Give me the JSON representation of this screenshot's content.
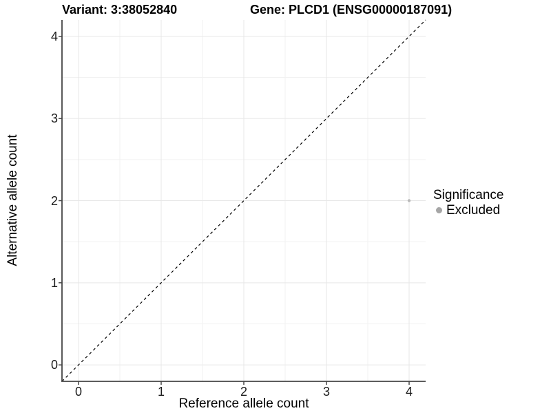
{
  "chart_data": {
    "type": "scatter",
    "title_left": "Variant: 3:38052840",
    "title_right": "Gene: PLCD1 (ENSG00000187091)",
    "xlabel": "Reference allele count",
    "ylabel": "Alternative allele count",
    "xlim": [
      -0.2,
      4.2
    ],
    "ylim": [
      -0.2,
      4.2
    ],
    "x_ticks": [
      0,
      1,
      2,
      3,
      4
    ],
    "y_ticks": [
      0,
      1,
      2,
      3,
      4
    ],
    "x_minor_ticks": [
      0.5,
      1.5,
      2.5,
      3.5
    ],
    "y_minor_ticks": [
      0.5,
      1.5,
      2.5,
      3.5
    ],
    "grid": true,
    "reference_line": {
      "style": "dashed",
      "from": [
        -0.2,
        -0.2
      ],
      "to": [
        4.2,
        4.2
      ],
      "color": "#000000"
    },
    "series": [
      {
        "name": "Excluded",
        "color": "#b9b9b9",
        "point_radius": 2.2,
        "points": [
          {
            "x": 4,
            "y": 2
          }
        ]
      }
    ],
    "legend": {
      "title": "Significance",
      "position": "right",
      "entries": [
        {
          "label": "Excluded",
          "color": "#a6a6a6"
        }
      ]
    },
    "style": {
      "major_grid_color": "#e7e7e7",
      "minor_grid_color": "#f2f2f2",
      "axis_line_color": "#454545",
      "tick_color": "#454545",
      "background": "#ffffff"
    }
  }
}
